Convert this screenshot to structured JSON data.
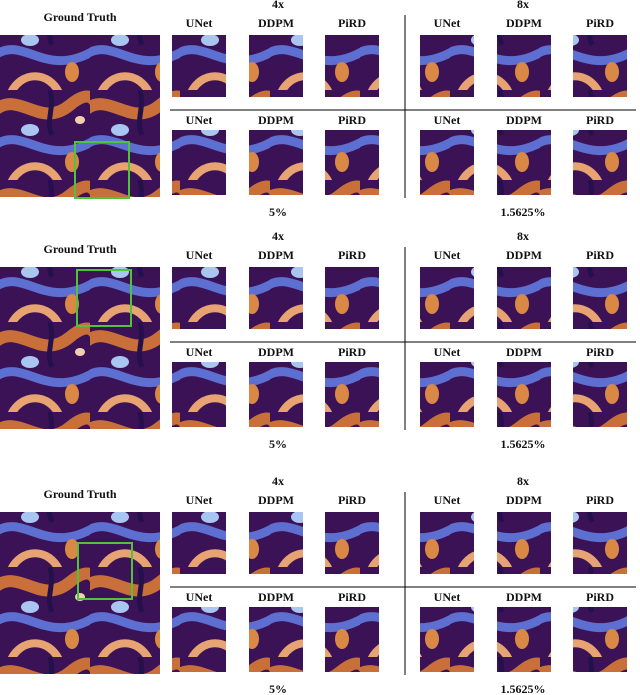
{
  "panels": [
    {
      "ground_truth": "Ground Truth",
      "groups": [
        {
          "scale": "4x",
          "rows": [
            [
              "UNet",
              "DDPM",
              "PiRD"
            ],
            [
              "UNet",
              "DDPM",
              "PiRD"
            ]
          ],
          "caption": "5%"
        },
        {
          "scale": "8x",
          "rows": [
            [
              "UNet",
              "DDPM",
              "PiRD"
            ],
            [
              "UNet",
              "DDPM",
              "PiRD"
            ]
          ],
          "caption": "1.5625%"
        }
      ]
    },
    {
      "ground_truth": "Ground Truth",
      "groups": [
        {
          "scale": "4x",
          "rows": [
            [
              "UNet",
              "DDPM",
              "PiRD"
            ],
            [
              "UNet",
              "DDPM",
              "PiRD"
            ]
          ],
          "caption": "5%"
        },
        {
          "scale": "8x",
          "rows": [
            [
              "UNet",
              "DDPM",
              "PiRD"
            ],
            [
              "UNet",
              "DDPM",
              "PiRD"
            ]
          ],
          "caption": "1.5625%"
        }
      ]
    },
    {
      "ground_truth": "Ground Truth",
      "groups": [
        {
          "scale": "4x",
          "rows": [
            [
              "UNet",
              "DDPM",
              "PiRD"
            ],
            [
              "UNet",
              "DDPM",
              "PiRD"
            ]
          ],
          "caption": "5%"
        },
        {
          "scale": "8x",
          "rows": [
            [
              "UNet",
              "DDPM",
              "PiRD"
            ],
            [
              "UNet",
              "DDPM",
              "PiRD"
            ]
          ],
          "caption": "1.5625%"
        }
      ]
    }
  ]
}
